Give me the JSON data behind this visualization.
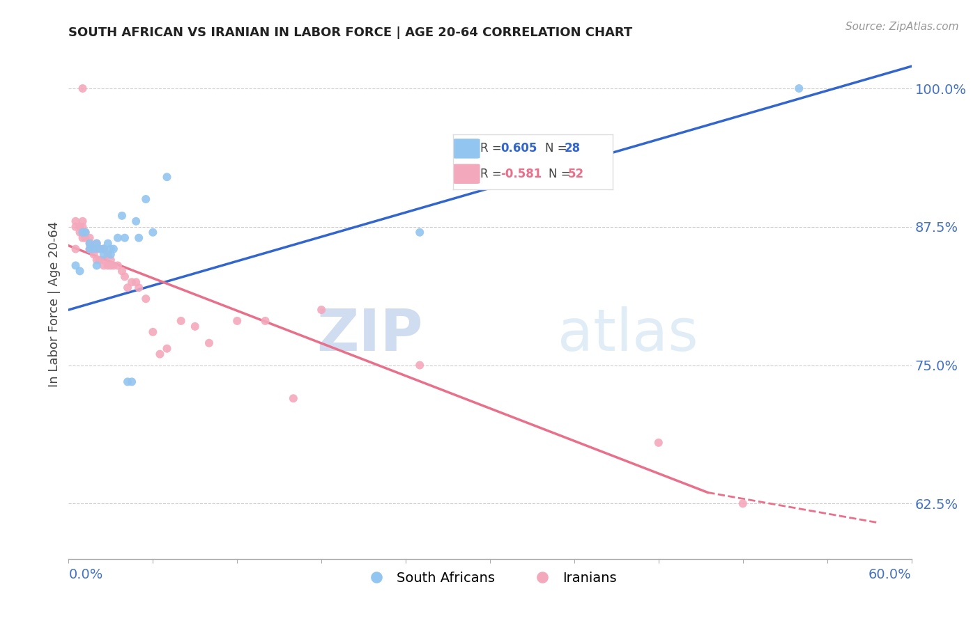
{
  "title": "SOUTH AFRICAN VS IRANIAN IN LABOR FORCE | AGE 20-64 CORRELATION CHART",
  "source": "Source: ZipAtlas.com",
  "ylabel": "In Labor Force | Age 20-64",
  "ytick_labels": [
    "100.0%",
    "87.5%",
    "75.0%",
    "62.5%"
  ],
  "ytick_values": [
    1.0,
    0.875,
    0.75,
    0.625
  ],
  "xlim": [
    0.0,
    0.6
  ],
  "ylim": [
    0.575,
    1.035
  ],
  "blue_color": "#92C5F0",
  "pink_color": "#F4A8BC",
  "blue_line_color": "#3366CC",
  "pink_line_color": "#E8708A",
  "watermark_zip": "ZIP",
  "watermark_atlas": "atlas",
  "south_africans_x": [
    0.005,
    0.008,
    0.01,
    0.012,
    0.015,
    0.015,
    0.018,
    0.02,
    0.02,
    0.022,
    0.025,
    0.025,
    0.028,
    0.03,
    0.03,
    0.032,
    0.035,
    0.038,
    0.04,
    0.042,
    0.045,
    0.048,
    0.05,
    0.055,
    0.06,
    0.07,
    0.25,
    0.52
  ],
  "south_africans_y": [
    0.84,
    0.835,
    0.87,
    0.87,
    0.86,
    0.855,
    0.855,
    0.86,
    0.84,
    0.855,
    0.855,
    0.85,
    0.86,
    0.855,
    0.85,
    0.855,
    0.865,
    0.885,
    0.865,
    0.735,
    0.735,
    0.88,
    0.865,
    0.9,
    0.87,
    0.92,
    0.87,
    1.0
  ],
  "iranians_x": [
    0.005,
    0.005,
    0.005,
    0.008,
    0.008,
    0.01,
    0.01,
    0.01,
    0.01,
    0.01,
    0.012,
    0.012,
    0.015,
    0.015,
    0.015,
    0.018,
    0.018,
    0.02,
    0.02,
    0.02,
    0.022,
    0.022,
    0.025,
    0.025,
    0.025,
    0.025,
    0.028,
    0.028,
    0.03,
    0.03,
    0.032,
    0.035,
    0.038,
    0.04,
    0.042,
    0.045,
    0.048,
    0.05,
    0.055,
    0.06,
    0.065,
    0.07,
    0.08,
    0.09,
    0.1,
    0.12,
    0.14,
    0.16,
    0.18,
    0.25,
    0.42,
    0.48
  ],
  "iranians_y": [
    0.855,
    0.875,
    0.88,
    0.875,
    0.87,
    1.0,
    0.88,
    0.875,
    0.87,
    0.865,
    0.87,
    0.865,
    0.865,
    0.86,
    0.855,
    0.855,
    0.85,
    0.86,
    0.855,
    0.845,
    0.855,
    0.845,
    0.855,
    0.855,
    0.845,
    0.84,
    0.85,
    0.84,
    0.845,
    0.84,
    0.84,
    0.84,
    0.835,
    0.83,
    0.82,
    0.825,
    0.825,
    0.82,
    0.81,
    0.78,
    0.76,
    0.765,
    0.79,
    0.785,
    0.77,
    0.79,
    0.79,
    0.72,
    0.8,
    0.75,
    0.68,
    0.625
  ],
  "blue_line_x0": 0.0,
  "blue_line_y0": 0.8,
  "blue_line_x1": 0.6,
  "blue_line_y1": 1.02,
  "pink_line_x0": 0.0,
  "pink_line_y0": 0.858,
  "pink_line_x1_solid": 0.455,
  "pink_line_y1_solid": 0.635,
  "pink_line_x1_dash": 0.575,
  "pink_line_y1_dash": 0.608
}
